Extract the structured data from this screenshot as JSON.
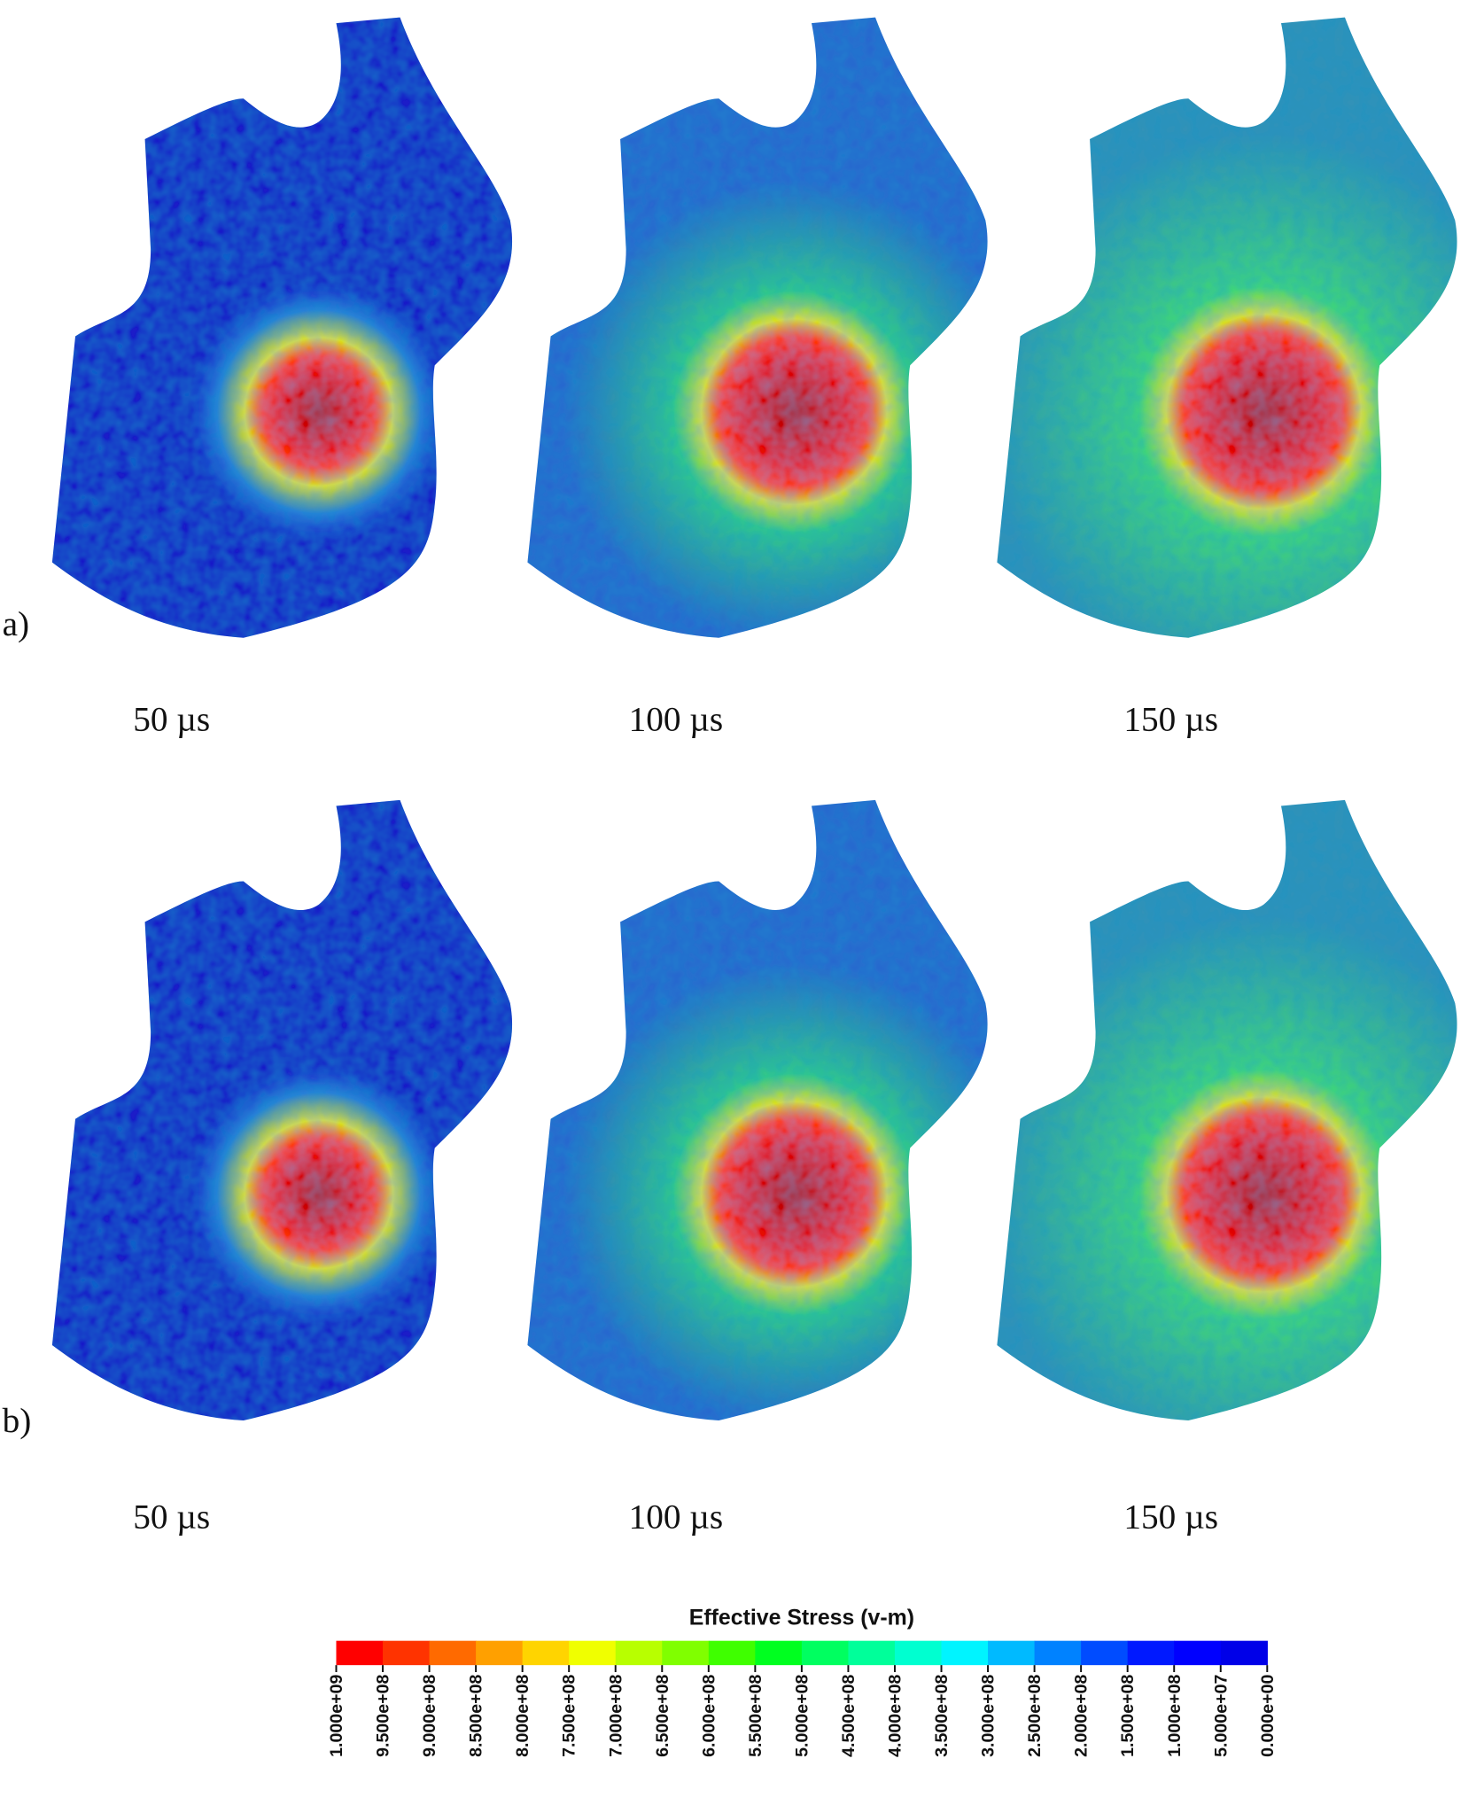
{
  "panels": [
    {
      "label": "a)",
      "frames": [
        {
          "time": "50 µs"
        },
        {
          "time": "100 µs"
        },
        {
          "time": "150 µs"
        }
      ]
    },
    {
      "label": "b)",
      "frames": [
        {
          "time": "50 µs"
        },
        {
          "time": "100 µs"
        },
        {
          "time": "150 µs"
        }
      ]
    }
  ],
  "colorbar": {
    "title": "Effective Stress (v-m)",
    "colors": [
      "#ff0000",
      "#ff3300",
      "#ff6a00",
      "#ffa000",
      "#ffd400",
      "#f0ff00",
      "#b8ff00",
      "#80ff00",
      "#3fff00",
      "#00ff20",
      "#00ff60",
      "#00ff9a",
      "#00ffd0",
      "#00f4ff",
      "#00baff",
      "#0082ff",
      "#004cff",
      "#0019ff",
      "#0000ff",
      "#0000e8"
    ],
    "ticks": [
      "1.000e+09",
      "9.500e+08",
      "9.000e+08",
      "8.500e+08",
      "8.000e+08",
      "7.500e+08",
      "7.000e+08",
      "6.500e+08",
      "6.000e+08",
      "5.500e+08",
      "5.000e+08",
      "4.500e+08",
      "4.000e+08",
      "3.500e+08",
      "3.000e+08",
      "2.500e+08",
      "2.000e+08",
      "1.500e+08",
      "1.000e+08",
      "5.000e+07",
      "0.000e+00"
    ]
  }
}
